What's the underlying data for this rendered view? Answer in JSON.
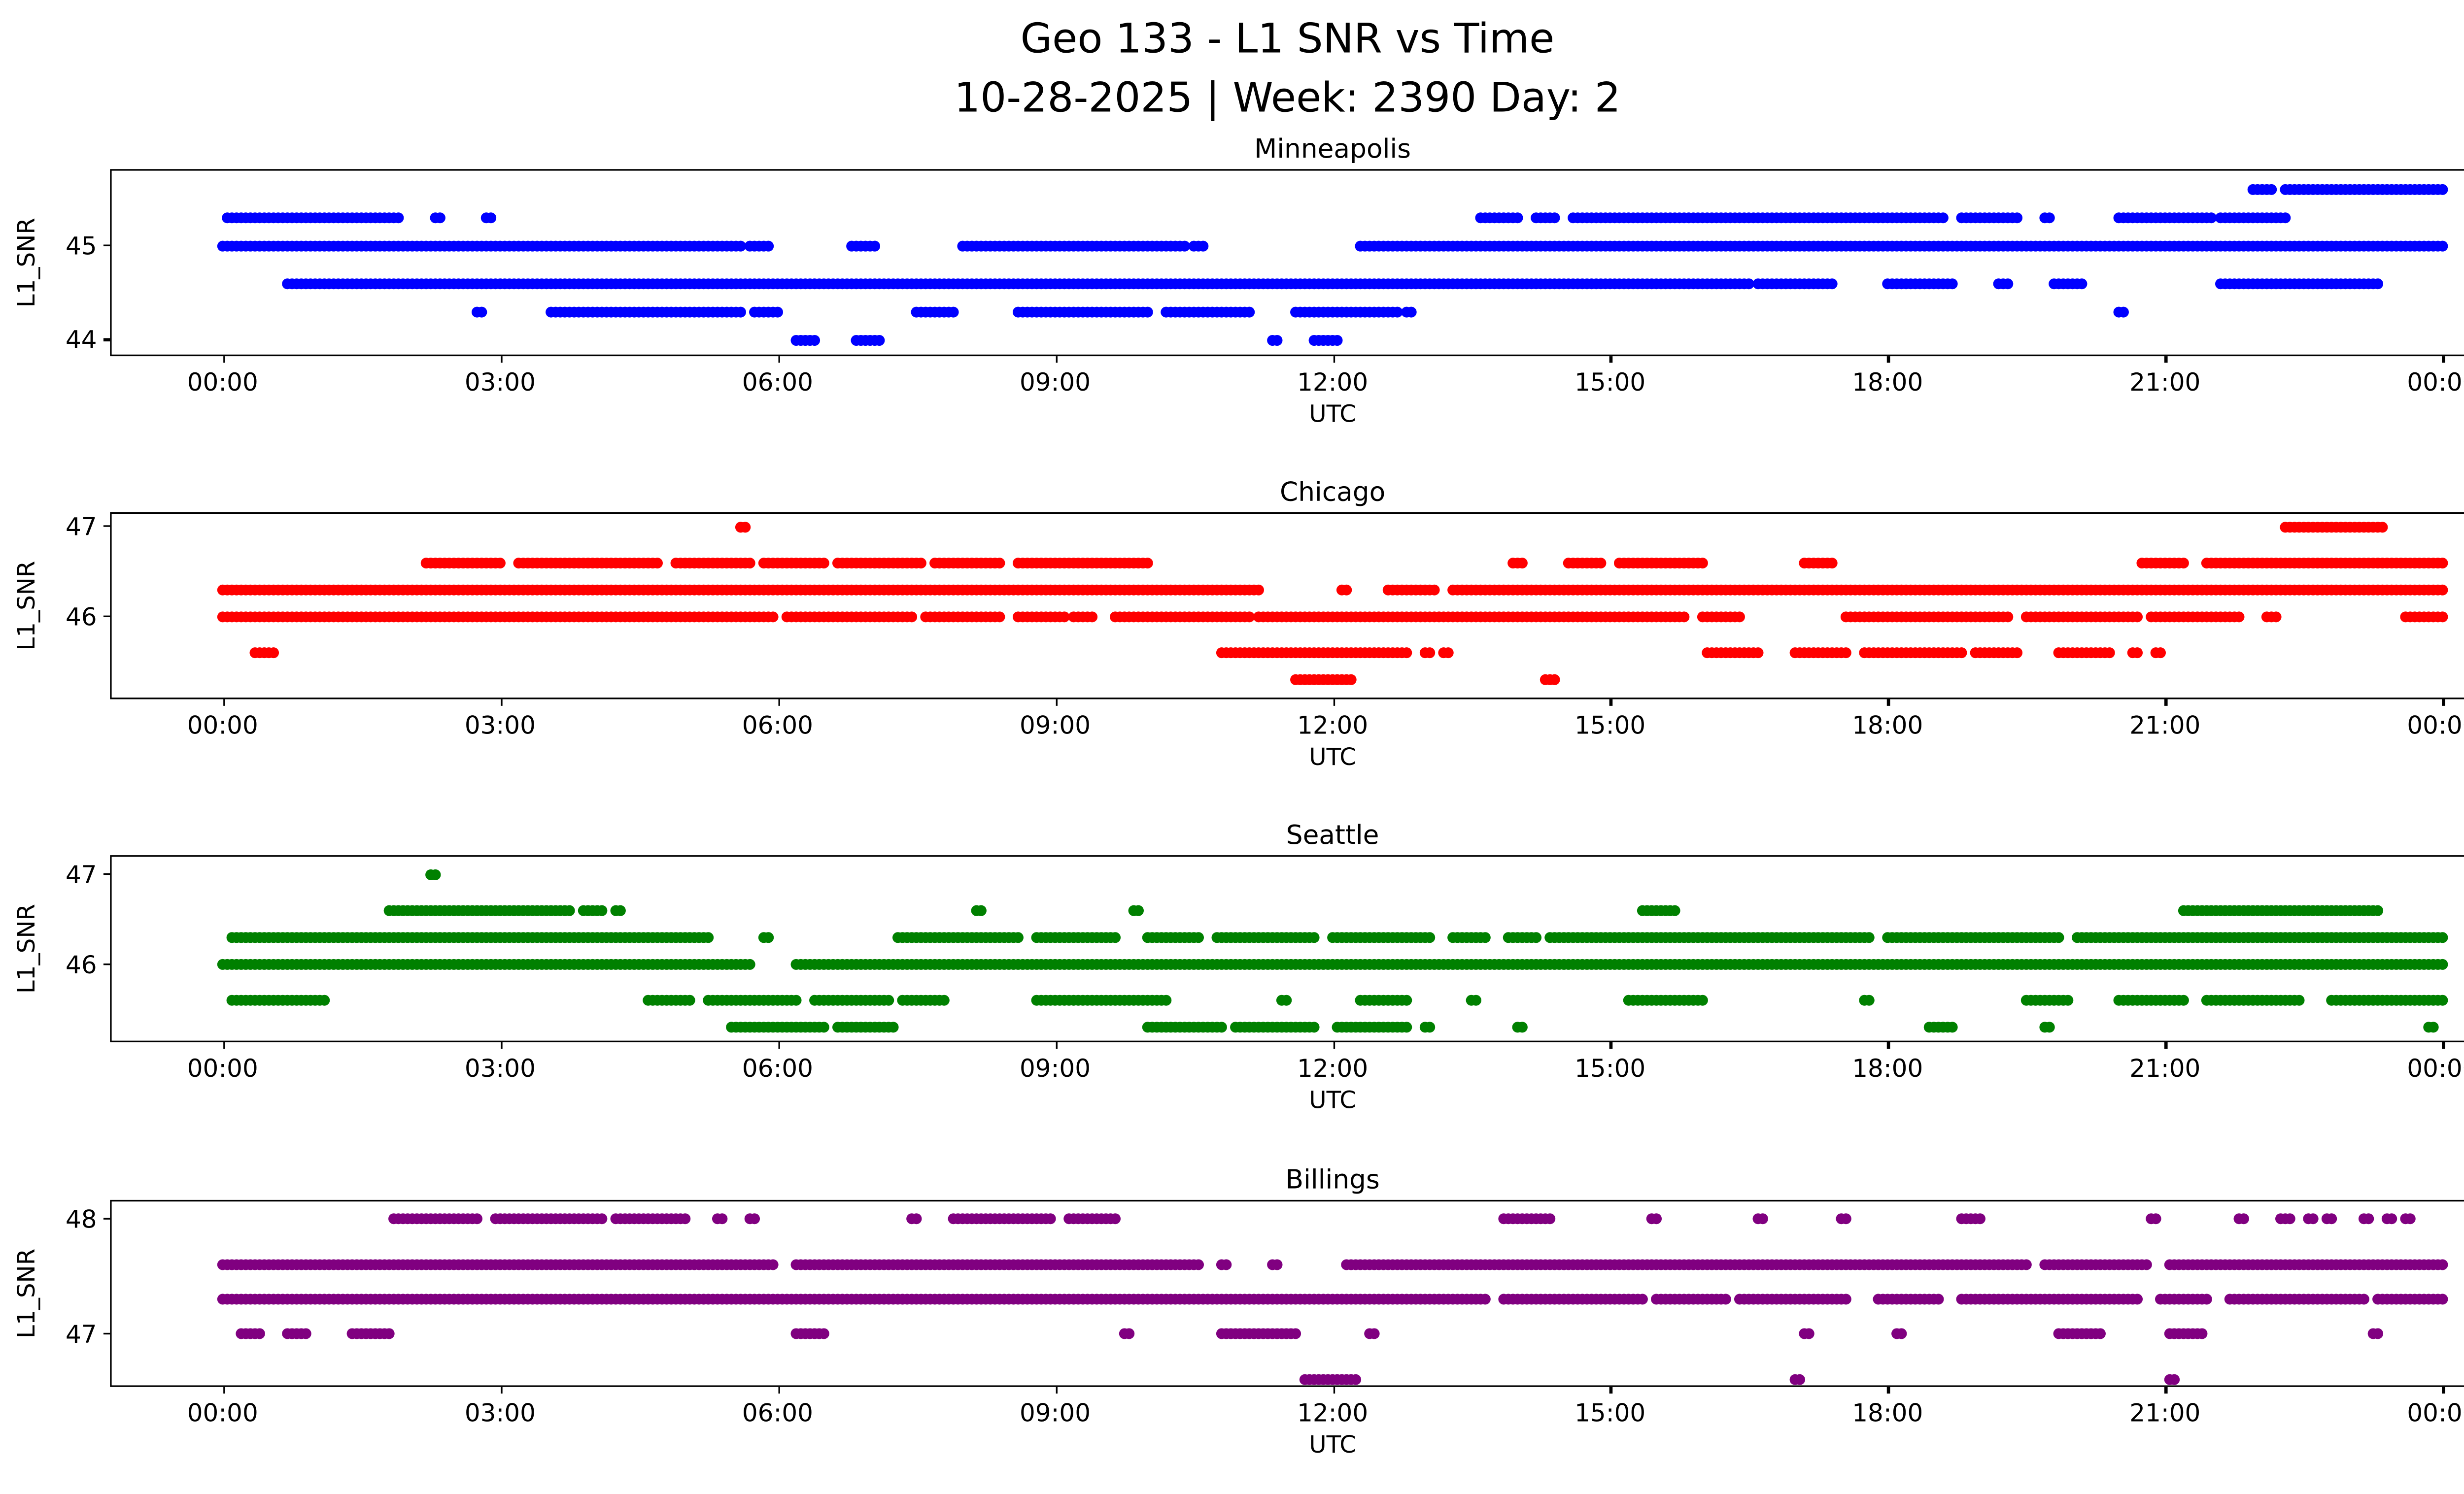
{
  "figure": {
    "title": "Geo 133 - L1 SNR vs Time",
    "subtitle": "10-28-2025 | Week: 2390 Day: 2"
  },
  "axes": {
    "xlabel": "UTC",
    "ylabel": "L1_SNR",
    "x_tick_labels": [
      "00:00",
      "03:00",
      "06:00",
      "09:00",
      "12:00",
      "15:00",
      "18:00",
      "21:00",
      "00:00"
    ],
    "x_tick_hours": [
      0,
      3,
      6,
      9,
      12,
      15,
      18,
      21,
      24
    ],
    "xlim": [
      -1.2,
      25.2
    ]
  },
  "chart_data": [
    {
      "type": "scatter",
      "title": "Minneapolis",
      "color": "#0000ff",
      "xlabel": "UTC",
      "ylabel": "L1_SNR",
      "xlim": [
        -1.2,
        25.2
      ],
      "ylim": [
        43.85,
        45.8
      ],
      "y_ticks": [
        44,
        45
      ],
      "bands": [
        {
          "snr": 45.6,
          "segments": [
            [
              21.95,
              22.15
            ],
            [
              22.3,
              24.0
            ]
          ]
        },
        {
          "snr": 45.3,
          "segments": [
            [
              0.05,
              1.6
            ],
            [
              1.65,
              1.9
            ],
            [
              2.3,
              2.35
            ],
            [
              2.85,
              2.9
            ],
            [
              13.6,
              14.0
            ],
            [
              14.2,
              14.4
            ],
            [
              14.6,
              18.6
            ],
            [
              18.8,
              19.4
            ],
            [
              19.7,
              19.75
            ],
            [
              20.5,
              21.5
            ],
            [
              21.6,
              22.3
            ]
          ]
        },
        {
          "snr": 45.0,
          "segments": [
            [
              0.0,
              5.6
            ],
            [
              5.7,
              5.9
            ],
            [
              6.8,
              7.05
            ],
            [
              8.0,
              10.4
            ],
            [
              10.5,
              10.6
            ],
            [
              12.3,
              24.0
            ]
          ]
        },
        {
          "snr": 44.6,
          "segments": [
            [
              0.7,
              16.5
            ],
            [
              16.6,
              17.4
            ],
            [
              18.0,
              18.7
            ],
            [
              19.2,
              19.3
            ],
            [
              19.8,
              20.1
            ],
            [
              21.6,
              23.3
            ]
          ]
        },
        {
          "snr": 44.3,
          "segments": [
            [
              2.75,
              2.8
            ],
            [
              3.55,
              5.6
            ],
            [
              5.75,
              6.0
            ],
            [
              7.5,
              7.9
            ],
            [
              8.6,
              10.0
            ],
            [
              10.2,
              11.1
            ],
            [
              11.6,
              12.7
            ],
            [
              12.8,
              12.85
            ],
            [
              20.5,
              20.55
            ]
          ]
        },
        {
          "snr": 44.0,
          "segments": [
            [
              6.2,
              6.4
            ],
            [
              6.85,
              7.1
            ],
            [
              11.35,
              11.4
            ],
            [
              11.8,
              12.05
            ]
          ]
        }
      ]
    },
    {
      "type": "scatter",
      "title": "Chicago",
      "color": "#ff0000",
      "xlabel": "UTC",
      "ylabel": "L1_SNR",
      "xlim": [
        -1.2,
        25.2
      ],
      "ylim": [
        45.1,
        47.15
      ],
      "y_ticks": [
        46,
        47
      ],
      "bands": [
        {
          "snr": 47.0,
          "segments": [
            [
              5.6,
              5.65
            ],
            [
              22.3,
              23.35
            ]
          ]
        },
        {
          "snr": 46.6,
          "segments": [
            [
              2.2,
              3.0
            ],
            [
              3.2,
              4.7
            ],
            [
              4.9,
              5.7
            ],
            [
              5.85,
              6.5
            ],
            [
              6.65,
              7.55
            ],
            [
              7.7,
              8.4
            ],
            [
              8.6,
              10.0
            ],
            [
              13.95,
              14.05
            ],
            [
              14.55,
              14.9
            ],
            [
              15.1,
              16.0
            ],
            [
              17.1,
              17.4
            ],
            [
              20.75,
              21.2
            ],
            [
              21.45,
              24.0
            ]
          ]
        },
        {
          "snr": 46.3,
          "segments": [
            [
              0.0,
              11.2
            ],
            [
              12.1,
              12.15
            ],
            [
              12.6,
              13.1
            ],
            [
              13.3,
              24.0
            ]
          ]
        },
        {
          "snr": 46.0,
          "segments": [
            [
              0.0,
              5.95
            ],
            [
              6.1,
              7.45
            ],
            [
              7.6,
              8.4
            ],
            [
              8.6,
              9.1
            ],
            [
              9.2,
              9.4
            ],
            [
              9.65,
              11.1
            ],
            [
              11.2,
              15.8
            ],
            [
              16.0,
              16.4
            ],
            [
              17.55,
              19.3
            ],
            [
              19.5,
              20.7
            ],
            [
              20.85,
              21.8
            ],
            [
              22.1,
              22.2
            ],
            [
              23.6,
              24.0
            ]
          ]
        },
        {
          "snr": 45.6,
          "segments": [
            [
              0.35,
              0.55
            ],
            [
              10.8,
              12.8
            ],
            [
              13.0,
              13.05
            ],
            [
              13.2,
              13.25
            ],
            [
              16.05,
              16.6
            ],
            [
              17.0,
              17.55
            ],
            [
              17.75,
              18.8
            ],
            [
              18.95,
              19.4
            ],
            [
              19.85,
              20.4
            ],
            [
              20.65,
              20.7
            ],
            [
              20.9,
              20.95
            ]
          ]
        },
        {
          "snr": 45.3,
          "segments": [
            [
              11.6,
              12.2
            ],
            [
              14.3,
              14.4
            ]
          ]
        }
      ]
    },
    {
      "type": "scatter",
      "title": "Seattle",
      "color": "#008000",
      "xlabel": "UTC",
      "ylabel": "L1_SNR",
      "xlim": [
        -1.2,
        25.2
      ],
      "ylim": [
        45.15,
        47.2
      ],
      "y_ticks": [
        46,
        47
      ],
      "bands": [
        {
          "snr": 47.0,
          "segments": [
            [
              2.25,
              2.3
            ]
          ]
        },
        {
          "snr": 46.6,
          "segments": [
            [
              1.8,
              3.75
            ],
            [
              3.9,
              4.1
            ],
            [
              4.25,
              4.3
            ],
            [
              8.15,
              8.2
            ],
            [
              9.85,
              9.9
            ],
            [
              15.35,
              15.7
            ],
            [
              21.2,
              23.3
            ]
          ]
        },
        {
          "snr": 46.3,
          "segments": [
            [
              0.1,
              5.25
            ],
            [
              5.85,
              5.9
            ],
            [
              7.3,
              8.6
            ],
            [
              8.8,
              9.65
            ],
            [
              10.0,
              10.55
            ],
            [
              10.75,
              11.8
            ],
            [
              12.0,
              13.05
            ],
            [
              13.3,
              13.65
            ],
            [
              13.9,
              14.2
            ],
            [
              14.35,
              17.8
            ],
            [
              18.0,
              19.85
            ],
            [
              20.05,
              24.0
            ]
          ]
        },
        {
          "snr": 46.0,
          "segments": [
            [
              0.0,
              5.7
            ],
            [
              6.2,
              24.0
            ]
          ]
        },
        {
          "snr": 45.6,
          "segments": [
            [
              0.1,
              1.1
            ],
            [
              4.6,
              5.05
            ],
            [
              5.25,
              6.2
            ],
            [
              6.4,
              7.2
            ],
            [
              7.35,
              7.8
            ],
            [
              8.8,
              10.2
            ],
            [
              11.45,
              11.5
            ],
            [
              12.3,
              12.8
            ],
            [
              13.5,
              13.55
            ],
            [
              15.2,
              16.0
            ],
            [
              17.75,
              17.8
            ],
            [
              19.5,
              19.95
            ],
            [
              20.5,
              21.2
            ],
            [
              21.45,
              22.45
            ],
            [
              22.8,
              24.0
            ]
          ]
        },
        {
          "snr": 45.3,
          "segments": [
            [
              5.5,
              6.5
            ],
            [
              6.65,
              7.25
            ],
            [
              10.0,
              10.8
            ],
            [
              10.95,
              11.8
            ],
            [
              12.05,
              12.8
            ],
            [
              13.0,
              13.05
            ],
            [
              14.0,
              14.05
            ],
            [
              18.45,
              18.7
            ],
            [
              19.7,
              19.75
            ],
            [
              23.85,
              23.9
            ]
          ]
        }
      ]
    },
    {
      "type": "scatter",
      "title": "Billings",
      "color": "#800080",
      "xlabel": "UTC",
      "ylabel": "L1_SNR",
      "xlim": [
        -1.2,
        25.2
      ],
      "ylim": [
        46.55,
        48.15
      ],
      "y_ticks": [
        47,
        48
      ],
      "bands": [
        {
          "snr": 48.0,
          "segments": [
            [
              1.85,
              2.75
            ],
            [
              2.95,
              4.1
            ],
            [
              4.25,
              5.0
            ],
            [
              5.35,
              5.4
            ],
            [
              5.7,
              5.75
            ],
            [
              7.45,
              7.5
            ],
            [
              7.9,
              8.95
            ],
            [
              9.15,
              9.65
            ],
            [
              13.85,
              14.35
            ],
            [
              15.45,
              15.5
            ],
            [
              16.6,
              16.65
            ],
            [
              17.5,
              17.55
            ],
            [
              18.8,
              19.0
            ],
            [
              20.85,
              20.9
            ],
            [
              21.8,
              21.85
            ],
            [
              22.25,
              22.35
            ],
            [
              22.55,
              22.6
            ],
            [
              22.75,
              22.8
            ],
            [
              23.15,
              23.2
            ],
            [
              23.4,
              23.45
            ],
            [
              23.6,
              23.65
            ]
          ]
        },
        {
          "snr": 47.6,
          "segments": [
            [
              0.0,
              5.95
            ],
            [
              6.2,
              10.55
            ],
            [
              10.8,
              10.85
            ],
            [
              11.35,
              11.4
            ],
            [
              12.15,
              17.55
            ],
            [
              17.6,
              19.5
            ],
            [
              19.7,
              20.8
            ],
            [
              21.05,
              24.0
            ]
          ]
        },
        {
          "snr": 47.3,
          "segments": [
            [
              0.0,
              13.65
            ],
            [
              13.85,
              15.35
            ],
            [
              15.5,
              16.25
            ],
            [
              16.4,
              17.55
            ],
            [
              17.9,
              18.55
            ],
            [
              18.8,
              20.7
            ],
            [
              20.95,
              21.45
            ],
            [
              21.7,
              23.15
            ],
            [
              23.3,
              24.0
            ]
          ]
        },
        {
          "snr": 47.0,
          "segments": [
            [
              0.2,
              0.4
            ],
            [
              0.7,
              0.9
            ],
            [
              1.4,
              1.8
            ],
            [
              6.2,
              6.5
            ],
            [
              9.75,
              9.8
            ],
            [
              10.8,
              11.6
            ],
            [
              12.4,
              12.45
            ],
            [
              17.1,
              17.15
            ],
            [
              18.1,
              18.15
            ],
            [
              19.85,
              20.3
            ],
            [
              21.05,
              21.4
            ],
            [
              23.25,
              23.3
            ]
          ]
        },
        {
          "snr": 46.6,
          "segments": [
            [
              11.7,
              12.25
            ],
            [
              17.0,
              17.05
            ],
            [
              21.05,
              21.1
            ]
          ]
        }
      ]
    }
  ]
}
